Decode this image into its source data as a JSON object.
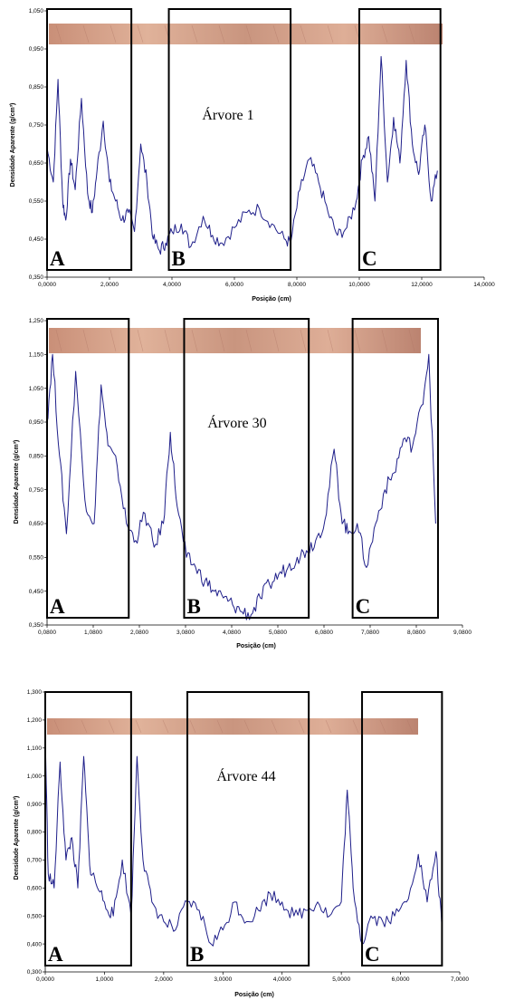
{
  "colors": {
    "series": "#1f1f8a",
    "wood_light": "#d9a88c",
    "wood_dark": "#b07766",
    "box": "#000000"
  },
  "chart_data": [
    {
      "type": "line",
      "title": "Árvore 1",
      "xlabel": "Posição (cm)",
      "ylabel": "Densidade Aparente (g/cm³)",
      "xlim": [
        0,
        14
      ],
      "ylim": [
        0.35,
        1.05
      ],
      "xticks": [
        "0,0000",
        "2,0000",
        "4,0000",
        "6,0000",
        "8,0000",
        "10,0000",
        "12,0000",
        "14,0000"
      ],
      "yticks": [
        "0,350",
        "0,450",
        "0,550",
        "0,650",
        "0,750",
        "0,850",
        "0,950",
        "1,050"
      ],
      "regions": [
        {
          "label": "A",
          "x0": 0.0,
          "x1": 2.7
        },
        {
          "label": "B",
          "x0": 3.9,
          "x1": 7.8
        },
        {
          "label": "C",
          "x0": 10.0,
          "x1": 12.6
        }
      ],
      "series": [
        {
          "x": [
            0.0,
            0.2,
            0.35,
            0.5,
            0.6,
            0.75,
            0.9,
            1.1,
            1.3,
            1.45,
            1.6,
            1.8,
            2.0,
            2.2,
            2.4,
            2.6,
            2.8,
            3.0,
            3.2,
            3.4,
            3.6,
            3.8,
            4.0,
            4.3,
            4.6,
            5.0,
            5.3,
            5.6,
            6.0,
            6.4,
            6.8,
            7.2,
            7.6,
            7.8,
            8.1,
            8.4,
            8.7,
            9.0,
            9.3,
            9.6,
            9.9,
            10.1,
            10.3,
            10.5,
            10.7,
            10.9,
            11.1,
            11.3,
            11.5,
            11.7,
            11.9,
            12.1,
            12.3,
            12.5
          ],
          "y": [
            0.69,
            0.6,
            0.87,
            0.55,
            0.5,
            0.66,
            0.58,
            0.82,
            0.57,
            0.52,
            0.63,
            0.76,
            0.6,
            0.55,
            0.5,
            0.52,
            0.47,
            0.7,
            0.6,
            0.45,
            0.42,
            0.44,
            0.47,
            0.49,
            0.43,
            0.51,
            0.46,
            0.44,
            0.48,
            0.52,
            0.53,
            0.49,
            0.45,
            0.44,
            0.58,
            0.66,
            0.6,
            0.52,
            0.46,
            0.48,
            0.55,
            0.66,
            0.72,
            0.55,
            0.93,
            0.6,
            0.77,
            0.65,
            0.92,
            0.7,
            0.62,
            0.75,
            0.55,
            0.63
          ]
        }
      ]
    },
    {
      "type": "line",
      "title": "Árvore 30",
      "xlabel": "Posição (cm)",
      "ylabel": "Densidade Aparente (g/cm³)",
      "xlim": [
        0.08,
        9.08
      ],
      "ylim": [
        0.35,
        1.25
      ],
      "xticks": [
        "0,0800",
        "1,0800",
        "2,0800",
        "3,0800",
        "4,0800",
        "5,0800",
        "6,0800",
        "7,0800",
        "8,0800",
        "9,0800"
      ],
      "yticks": [
        "0,350",
        "0,450",
        "0,550",
        "0,650",
        "0,750",
        "0,850",
        "0,950",
        "1,050",
        "1,150",
        "1,250"
      ],
      "regions": [
        {
          "label": "A",
          "x0": 0.08,
          "x1": 1.85
        },
        {
          "label": "B",
          "x0": 3.05,
          "x1": 5.75
        },
        {
          "label": "C",
          "x0": 6.7,
          "x1": 8.55
        }
      ],
      "series": [
        {
          "x": [
            0.08,
            0.2,
            0.35,
            0.5,
            0.7,
            0.9,
            1.1,
            1.25,
            1.4,
            1.6,
            1.8,
            2.0,
            2.2,
            2.4,
            2.6,
            2.75,
            2.9,
            3.1,
            3.3,
            3.5,
            3.7,
            3.9,
            4.1,
            4.3,
            4.5,
            4.7,
            4.9,
            5.1,
            5.3,
            5.5,
            5.7,
            5.9,
            6.1,
            6.3,
            6.45,
            6.6,
            6.8,
            7.0,
            7.2,
            7.4,
            7.6,
            7.8,
            8.0,
            8.2,
            8.35,
            8.5
          ],
          "y": [
            0.95,
            1.15,
            0.85,
            0.62,
            1.1,
            0.72,
            0.65,
            1.06,
            0.88,
            0.82,
            0.65,
            0.6,
            0.68,
            0.58,
            0.65,
            0.92,
            0.7,
            0.55,
            0.52,
            0.48,
            0.45,
            0.43,
            0.41,
            0.39,
            0.38,
            0.43,
            0.47,
            0.5,
            0.52,
            0.55,
            0.57,
            0.6,
            0.66,
            0.87,
            0.68,
            0.62,
            0.65,
            0.52,
            0.65,
            0.75,
            0.8,
            0.9,
            0.88,
            1.0,
            1.15,
            0.65
          ]
        }
      ]
    },
    {
      "type": "line",
      "title": "Árvore 44",
      "xlabel": "Posição (cm)",
      "ylabel": "Densidade Aparente (g/cm³)",
      "xlim": [
        0,
        7
      ],
      "ylim": [
        0.3,
        1.3
      ],
      "xticks": [
        "0,0000",
        "1,0000",
        "2,0000",
        "3,0000",
        "4,0000",
        "5,0000",
        "6,0000",
        "7,0000"
      ],
      "yticks": [
        "0,300",
        "0,400",
        "0,500",
        "0,600",
        "0,700",
        "0,800",
        "0,900",
        "1,000",
        "1,100",
        "1,200",
        "1,300"
      ],
      "regions": [
        {
          "label": "A",
          "x0": 0.0,
          "x1": 1.45
        },
        {
          "label": "B",
          "x0": 2.4,
          "x1": 4.45
        },
        {
          "label": "C",
          "x0": 5.35,
          "x1": 6.7
        }
      ],
      "series": [
        {
          "x": [
            0.0,
            0.05,
            0.15,
            0.25,
            0.35,
            0.45,
            0.55,
            0.65,
            0.75,
            0.85,
            1.0,
            1.15,
            1.3,
            1.45,
            1.55,
            1.65,
            1.8,
            2.0,
            2.2,
            2.4,
            2.6,
            2.8,
            3.0,
            3.2,
            3.4,
            3.6,
            3.8,
            4.0,
            4.2,
            4.4,
            4.6,
            4.8,
            5.0,
            5.1,
            5.2,
            5.35,
            5.5,
            5.7,
            5.9,
            6.1,
            6.3,
            6.45,
            6.6,
            6.7
          ],
          "y": [
            1.15,
            0.65,
            0.6,
            1.05,
            0.7,
            0.78,
            0.6,
            1.07,
            0.68,
            0.62,
            0.55,
            0.5,
            0.7,
            0.5,
            1.07,
            0.7,
            0.55,
            0.48,
            0.45,
            0.55,
            0.52,
            0.4,
            0.45,
            0.55,
            0.48,
            0.52,
            0.58,
            0.55,
            0.5,
            0.52,
            0.55,
            0.5,
            0.55,
            0.95,
            0.6,
            0.4,
            0.5,
            0.48,
            0.5,
            0.55,
            0.72,
            0.55,
            0.73,
            0.45
          ]
        }
      ]
    }
  ]
}
